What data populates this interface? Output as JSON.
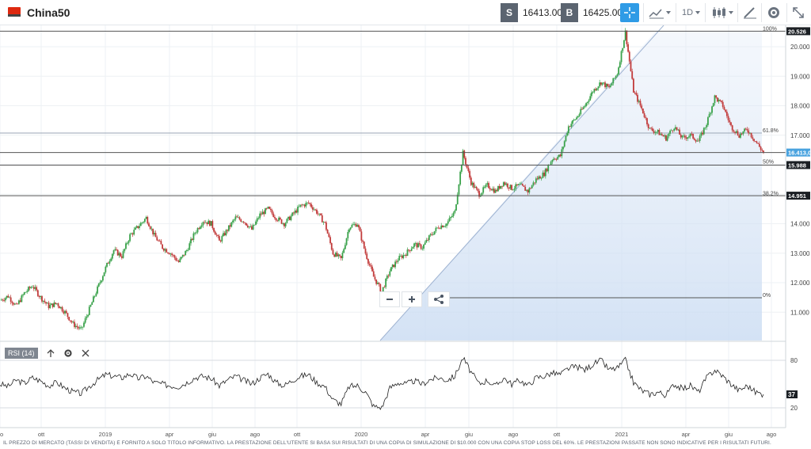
{
  "header": {
    "symbol": "China50",
    "sell_label": "S",
    "sell_price": "16413.00",
    "buy_label": "B",
    "buy_price": "16425.00",
    "timeframe": "1D"
  },
  "price_scale": {
    "ticks": [
      "20.000",
      "19.000",
      "18.000",
      "17.000",
      "16.000",
      "15.000",
      "14.000",
      "13.000",
      "12.000",
      "11.000"
    ],
    "high_badge": "20.526",
    "current_badge": "16.413,00",
    "mid_badge": "15.988",
    "low_fib_badge": "14.951"
  },
  "fibonacci": {
    "levels": [
      "100%",
      "61.8%",
      "50%",
      "38.2%",
      "0%"
    ]
  },
  "rsi": {
    "label": "RSI (14)",
    "upper": "80",
    "lower": "20",
    "current": "37"
  },
  "time_axis": [
    "o",
    "ott",
    "2019",
    "apr",
    "giu",
    "ago",
    "ott",
    "2020",
    "apr",
    "giu",
    "ago",
    "ott",
    "2021",
    "apr",
    "giu",
    "ago"
  ],
  "footer": {
    "disclaimer": "IL PREZZO DI MERCATO (TASSI DI VENDITA) È FORNITO A SOLO TITOLO INFORMATIVO. LA PRESTAZIONE DELL'UTENTE SI BASA SUI RISULTATI DI UNA COPIA DI SIMULAZIONE DI $10.000 CON UNA COPIA STOP LOSS DEL 60%. LE PRESTAZIONI PASSATE NON SONO INDICATIVE PER I RISULTATI FUTURI."
  },
  "chart_data": {
    "type": "line",
    "title": "China50",
    "price_min": 10500,
    "price_max": 20800,
    "fib_high": 20526,
    "fib_low": 11490,
    "levels": {
      "current": 16413,
      "mid": 15988,
      "fib382": 14951
    },
    "series": [
      {
        "values": [
          11400,
          11550,
          11200,
          11650,
          11900,
          11500,
          11200,
          11300,
          11000,
          10600,
          10400,
          11100,
          11800,
          12500,
          13100,
          12900,
          13600,
          13900,
          14200,
          13600,
          13200,
          13000,
          12700,
          13100,
          13700,
          14100,
          14000,
          13400,
          13800,
          14200,
          14100,
          13800,
          14300,
          14500,
          14200,
          14000,
          14300,
          14600,
          14700,
          14400,
          14000,
          13000,
          12800,
          13900,
          14000,
          13000,
          12200,
          11700,
          12400,
          12800,
          13000,
          13300,
          13200,
          13600,
          13900,
          14000,
          14400,
          16400,
          15400,
          15000,
          15300,
          15100,
          15400,
          15200,
          15300,
          15100,
          15500,
          15700,
          16200,
          16300,
          17300,
          17600,
          18000,
          18500,
          18800,
          18600,
          19100,
          20500,
          18500,
          17900,
          17200,
          17100,
          16900,
          17300,
          16900,
          17000,
          16800,
          17400,
          18300,
          18000,
          17300,
          17000,
          17200,
          16800,
          16413
        ]
      },
      {
        "values": [
          50,
          47,
          55,
          51,
          58,
          54,
          48,
          52,
          45,
          40,
          38,
          47,
          55,
          62,
          60,
          58,
          63,
          57,
          60,
          52,
          50,
          48,
          47,
          52,
          58,
          60,
          57,
          48,
          55,
          60,
          55,
          50,
          58,
          63,
          52,
          48,
          55,
          60,
          62,
          52,
          47,
          30,
          25,
          47,
          48,
          40,
          22,
          20,
          45,
          52,
          50,
          54,
          50,
          56,
          58,
          55,
          60,
          83,
          65,
          50,
          55,
          47,
          58,
          50,
          55,
          48,
          58,
          60,
          64,
          62,
          70,
          72,
          68,
          75,
          80,
          68,
          70,
          80,
          52,
          42,
          37,
          40,
          36,
          50,
          44,
          48,
          40,
          58,
          68,
          60,
          50,
          42,
          48,
          40,
          37
        ]
      }
    ]
  }
}
